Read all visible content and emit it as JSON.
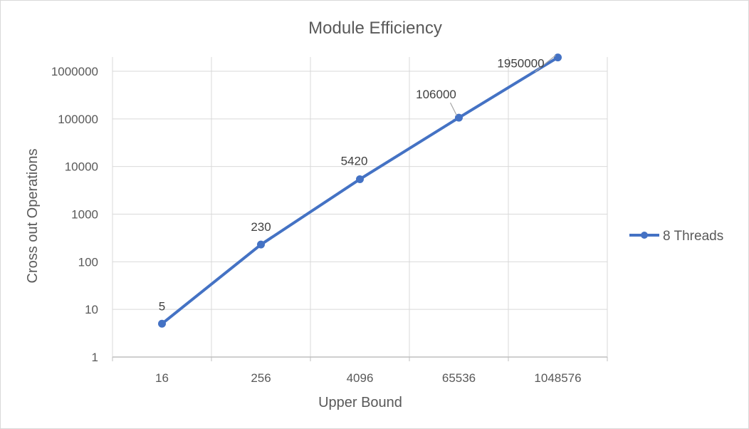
{
  "chart_data": {
    "type": "line",
    "title": "Module Efficiency",
    "xlabel": "Upper Bound",
    "ylabel": "Cross out Operations",
    "categories": [
      "16",
      "256",
      "4096",
      "65536",
      "1048576"
    ],
    "y_scale": "log",
    "ylim": [
      1,
      1000000
    ],
    "y_ticks": [
      "1",
      "10",
      "100",
      "1000",
      "10000",
      "100000",
      "1000000"
    ],
    "grid": true,
    "legend_position": "right",
    "series": [
      {
        "name": "8 Threads",
        "values": [
          5,
          230,
          5420,
          106000,
          1950000
        ],
        "data_labels": [
          "5",
          "230",
          "5420",
          "106000",
          "1950000"
        ],
        "color": "#4472c4"
      }
    ]
  }
}
